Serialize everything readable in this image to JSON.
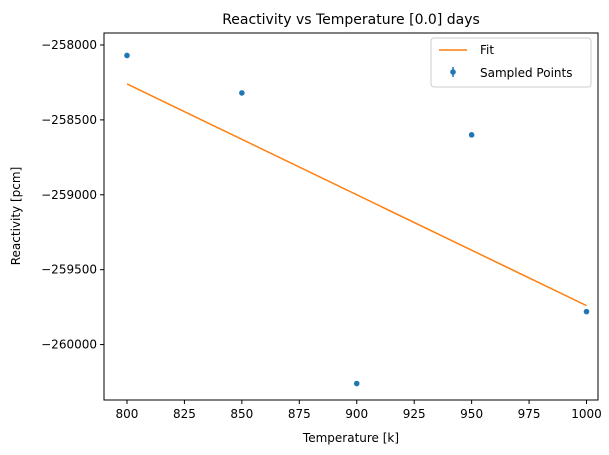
{
  "chart_data": {
    "type": "scatter",
    "title": "Reactivity vs Temperature [0.0] days",
    "xlabel": "Temperature [k]",
    "ylabel": "Reactivity [pcm]",
    "xlim": [
      790,
      1005
    ],
    "ylim": [
      -260370,
      -257920
    ],
    "xticks": [
      800,
      825,
      850,
      875,
      900,
      925,
      950,
      975,
      1000
    ],
    "yticks": [
      -258000,
      -258500,
      -259000,
      -259500,
      -260000
    ],
    "tick_labels": {
      "x": [
        "800",
        "825",
        "850",
        "875",
        "900",
        "925",
        "950",
        "975",
        "1000"
      ],
      "y": [
        "−258000",
        "−258500",
        "−259000",
        "−259500",
        "−260000"
      ]
    },
    "grid": false,
    "legend_position": "top-right",
    "series": [
      {
        "name": "Sampled Points",
        "kind": "scatter-errorbar",
        "color": "#1f77b4",
        "x": [
          800,
          850,
          900,
          950,
          1000
        ],
        "y": [
          -258070,
          -258320,
          -260260,
          -258600,
          -259780
        ]
      },
      {
        "name": "Fit",
        "kind": "line",
        "color": "#ff7f0e",
        "x": [
          800,
          1000
        ],
        "y": [
          -258260,
          -259740
        ]
      }
    ],
    "legend": [
      "Fit",
      "Sampled Points"
    ]
  }
}
